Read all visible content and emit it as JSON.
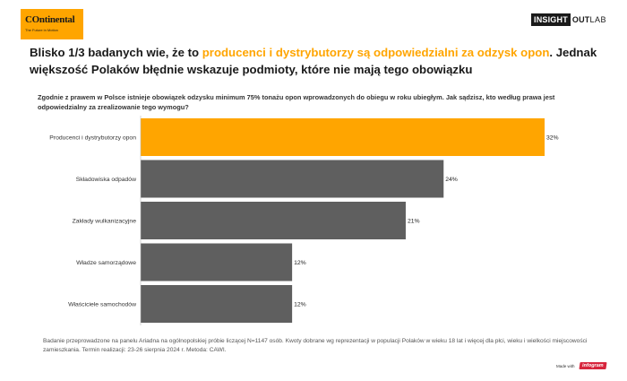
{
  "header": {
    "continental_logo": {
      "brand": "Ontinental",
      "tagline": "The Future in Motion"
    },
    "insight_logo": {
      "insight": "INSIGHT",
      "out": "OUT",
      "lab": "LAB"
    }
  },
  "headline": {
    "part1": "Blisko 1/3 badanych wie, że to ",
    "highlight": "producenci i dystrybutorzy są odpowiedzialni za odzysk opon",
    "part2": ". Jednak większość Polaków błędnie wskazuje podmioty, które nie mają tego obowiązku"
  },
  "question": "Zgodnie z prawem w Polsce istnieje obowiązek odzysku minimum 75% tonażu opon wprowadzonych do obiegu w roku ubiegłym. Jak sądzisz, kto według prawa jest odpowiedzialny za zrealizowanie tego wymogu?",
  "chart_data": {
    "type": "bar",
    "orientation": "horizontal",
    "categories": [
      "Producenci i dystrybutorzy opon",
      "Składowiska odpadów",
      "Zakłady wulkanizacyjne",
      "Władze samorządowe",
      "Właściciele samochodów"
    ],
    "values": [
      32,
      24,
      21,
      12,
      12
    ],
    "value_labels": [
      "32%",
      "24%",
      "21%",
      "12%",
      "12%"
    ],
    "unit": "%",
    "xlim": [
      0,
      32
    ],
    "colors": [
      "#ffa500",
      "#5f5f5f",
      "#5f5f5f",
      "#5f5f5f",
      "#5f5f5f"
    ],
    "grid": false,
    "legend": "none"
  },
  "footnote": "Badanie przeprowadzone na panelu Ariadna na ogólnopolskiej próbie liczącej N=1147 osób. Kwoty dobrane wg reprezentacji w populacji Polaków w wieku 18 lat i więcej dla płci, wieku i wielkości miejscowości zamieszkania. Termin realizacji: 23-26 sierpnia 2024 r. Metoda: CAWI.",
  "made_with": {
    "text": "Made with",
    "brand": "infogram"
  }
}
